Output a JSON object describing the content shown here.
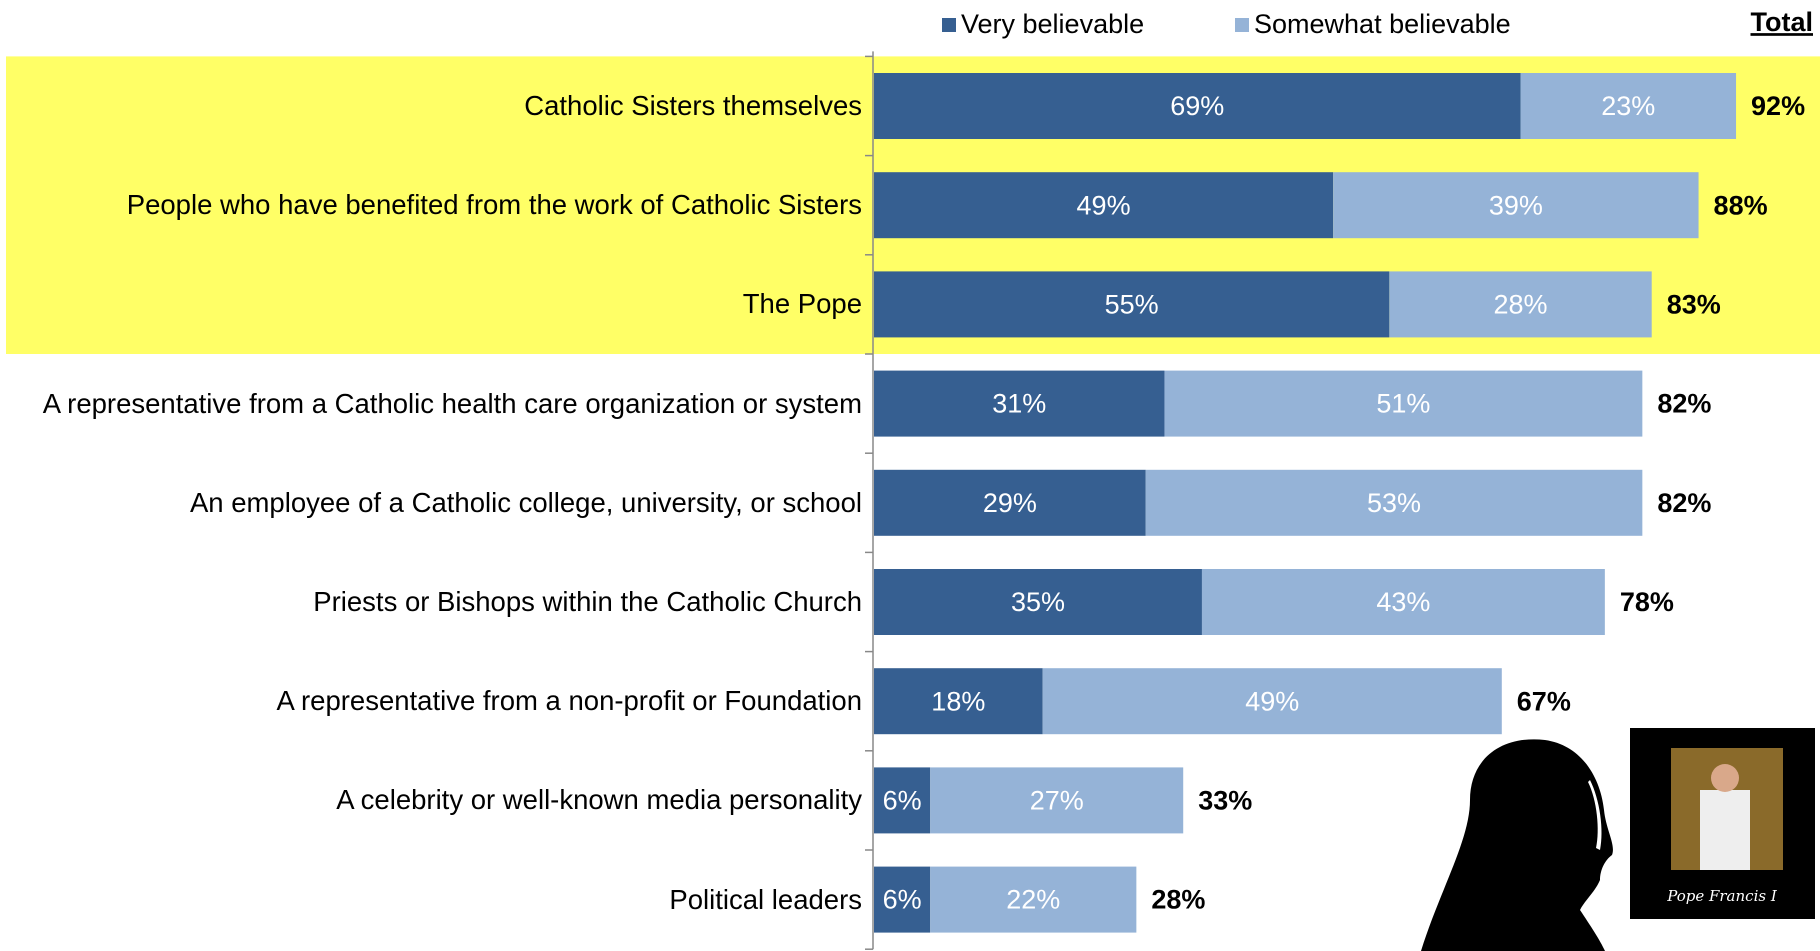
{
  "chart_data": {
    "type": "stacked-bar-horizontal",
    "categories": [
      "Catholic Sisters themselves",
      "People who have benefited from the work of Catholic Sisters",
      "The Pope",
      "A representative from a Catholic health care organization or system",
      "An employee of a Catholic college, university, or school",
      "Priests or Bishops within the Catholic Church",
      "A representative from a non-profit or Foundation",
      "A celebrity or well-known media personality",
      "Political leaders"
    ],
    "series": [
      {
        "name": "Very believable",
        "color": "#365f91",
        "values": [
          69,
          49,
          55,
          31,
          29,
          35,
          18,
          6,
          6
        ],
        "value_labels": [
          "69%",
          "49%",
          "55%",
          "31%",
          "29%",
          "35%",
          "18%",
          "6%",
          "6%"
        ]
      },
      {
        "name": "Somewhat believable",
        "color": "#95b3d7",
        "values": [
          23,
          39,
          28,
          51,
          53,
          43,
          49,
          27,
          22
        ],
        "value_labels": [
          "23%",
          "39%",
          "28%",
          "51%",
          "53%",
          "43%",
          "49%",
          "27%",
          "22%"
        ]
      }
    ],
    "totals": {
      "label": "Total",
      "values": [
        92,
        88,
        83,
        82,
        82,
        78,
        67,
        33,
        28
      ],
      "value_labels": [
        "92%",
        "88%",
        "83%",
        "82%",
        "82%",
        "78%",
        "67%",
        "33%",
        "28%"
      ]
    },
    "xlim": [
      0,
      100
    ],
    "highlight": {
      "color": "#ffff66",
      "rows": 3
    },
    "legend": "top",
    "image_caption": "Pope Francis I"
  }
}
